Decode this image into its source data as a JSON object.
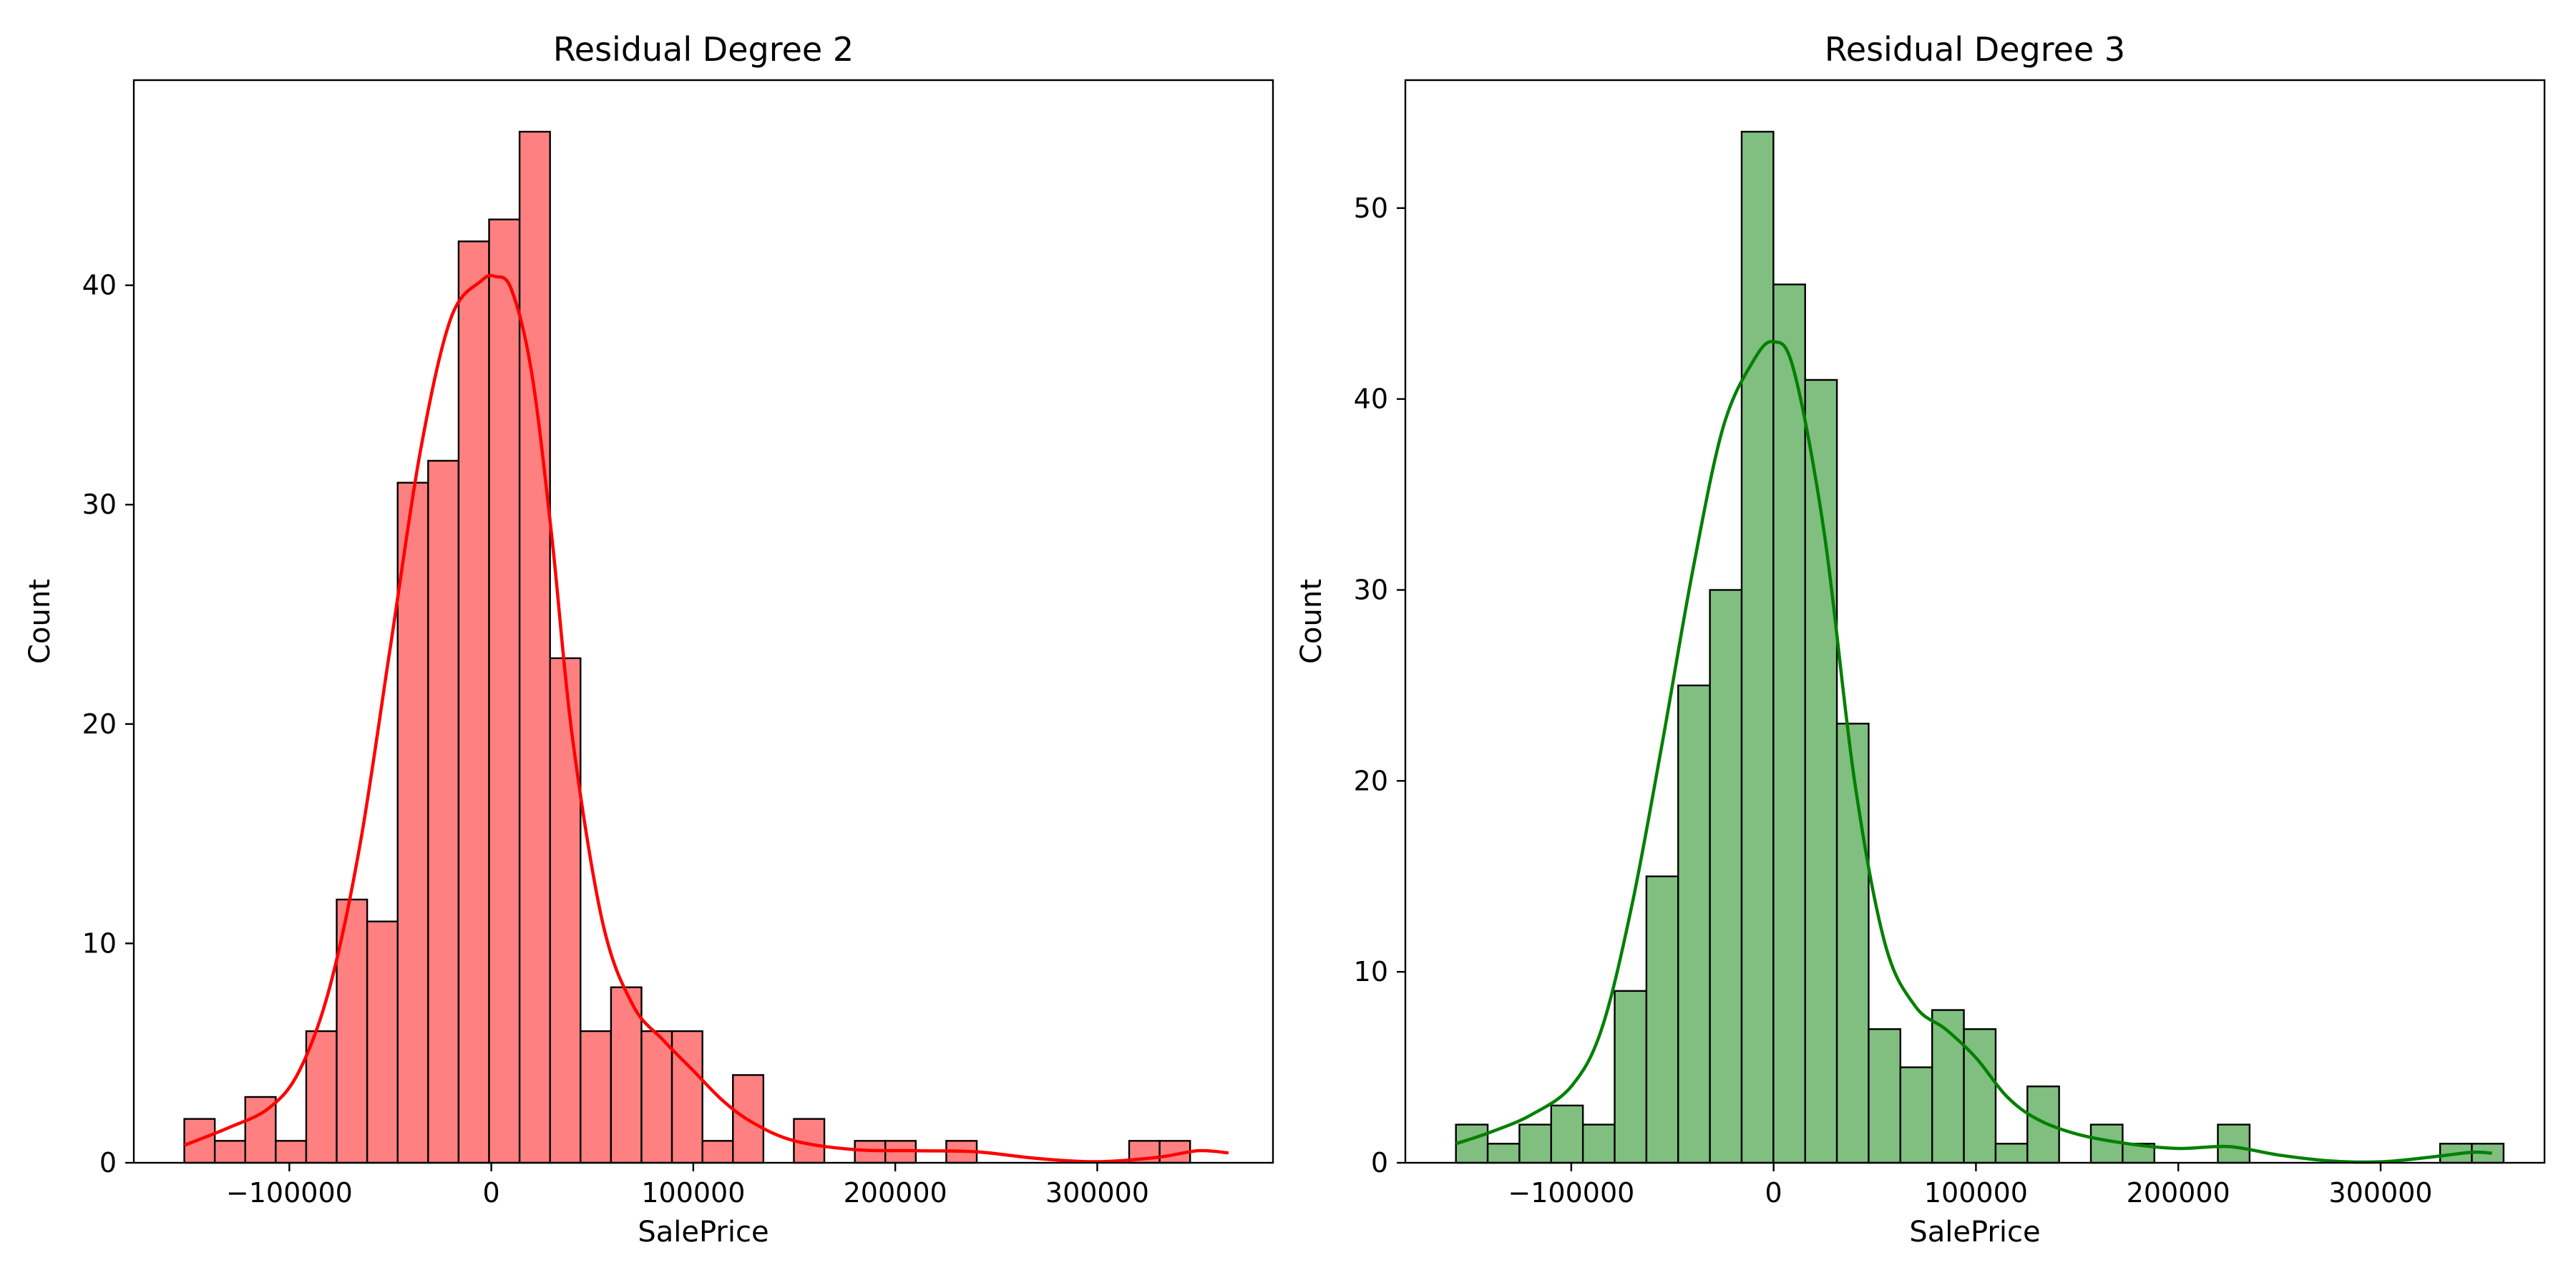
{
  "chart_data": [
    {
      "type": "bar",
      "subtype": "histogram-with-kde",
      "title": "Residual Degree 2",
      "xlabel": "SalePrice",
      "ylabel": "Count",
      "color": "#ff0000",
      "bar_fill": "#ff8080",
      "edge_color": "#000000",
      "xlim": [
        -177000,
        387000
      ],
      "ylim": [
        0,
        49.35
      ],
      "x_ticks": [
        -100000,
        0,
        100000,
        200000,
        300000
      ],
      "x_tick_labels": [
        "−100000",
        "0",
        "100000",
        "200000",
        "300000"
      ],
      "y_ticks": [
        0,
        10,
        20,
        30,
        40
      ],
      "y_tick_labels": [
        "0",
        "10",
        "20",
        "30",
        "40"
      ],
      "bin_start": -152000,
      "bin_width": 15090,
      "counts": [
        2,
        1,
        3,
        1,
        6,
        12,
        11,
        31,
        32,
        42,
        43,
        47,
        23,
        6,
        8,
        6,
        6,
        1,
        4,
        0,
        2,
        0,
        1,
        1,
        0,
        1,
        0,
        0,
        0,
        0,
        0,
        1,
        1
      ],
      "kde": {
        "x": [
          -152000,
          -130000,
          -110000,
          -95000,
          -80000,
          -65000,
          -50000,
          -35000,
          -20000,
          -5000,
          2000,
          10000,
          20000,
          30000,
          40000,
          55000,
          70000,
          85000,
          100000,
          115000,
          130000,
          150000,
          180000,
          210000,
          240000,
          270000,
          300000,
          330000,
          350000,
          365000
        ],
        "y": [
          0.8,
          1.6,
          2.5,
          4.2,
          8.0,
          14.5,
          23.5,
          32.5,
          38.5,
          40.2,
          40.4,
          39.8,
          36.0,
          28.5,
          19.5,
          11.0,
          7.2,
          5.6,
          4.2,
          2.8,
          1.8,
          1.0,
          0.6,
          0.55,
          0.5,
          0.2,
          0.05,
          0.25,
          0.55,
          0.45
        ]
      }
    },
    {
      "type": "bar",
      "subtype": "histogram-with-kde",
      "title": "Residual Degree 3",
      "xlabel": "SalePrice",
      "ylabel": "Count",
      "color": "#008000",
      "bar_fill": "#80bf80",
      "edge_color": "#000000",
      "xlim": [
        -182000,
        381000
      ],
      "ylim": [
        0,
        56.7
      ],
      "x_ticks": [
        -100000,
        0,
        100000,
        200000,
        300000
      ],
      "x_tick_labels": [
        "−100000",
        "0",
        "100000",
        "200000",
        "300000"
      ],
      "y_ticks": [
        0,
        10,
        20,
        30,
        40,
        50
      ],
      "y_tick_labels": [
        "0",
        "10",
        "20",
        "30",
        "40",
        "50"
      ],
      "bin_start": -157000,
      "bin_width": 15690,
      "counts": [
        2,
        1,
        2,
        3,
        2,
        9,
        15,
        25,
        30,
        54,
        46,
        41,
        23,
        7,
        5,
        8,
        7,
        1,
        4,
        0,
        2,
        1,
        0,
        0,
        2,
        0,
        0,
        0,
        0,
        0,
        0,
        1,
        1
      ],
      "kde": {
        "x": [
          -157000,
          -140000,
          -120000,
          -100000,
          -85000,
          -70000,
          -55000,
          -40000,
          -25000,
          -10000,
          0,
          10000,
          25000,
          40000,
          55000,
          70000,
          85000,
          100000,
          115000,
          130000,
          150000,
          175000,
          200000,
          225000,
          250000,
          275000,
          300000,
          325000,
          345000,
          355000
        ],
        "y": [
          1.0,
          1.6,
          2.5,
          4.0,
          7.0,
          13.5,
          22.0,
          31.0,
          38.5,
          42.0,
          43.0,
          41.5,
          33.0,
          20.0,
          11.5,
          8.2,
          7.0,
          5.5,
          3.5,
          2.3,
          1.5,
          1.0,
          0.75,
          0.85,
          0.4,
          0.1,
          0.05,
          0.3,
          0.55,
          0.5
        ]
      }
    }
  ]
}
